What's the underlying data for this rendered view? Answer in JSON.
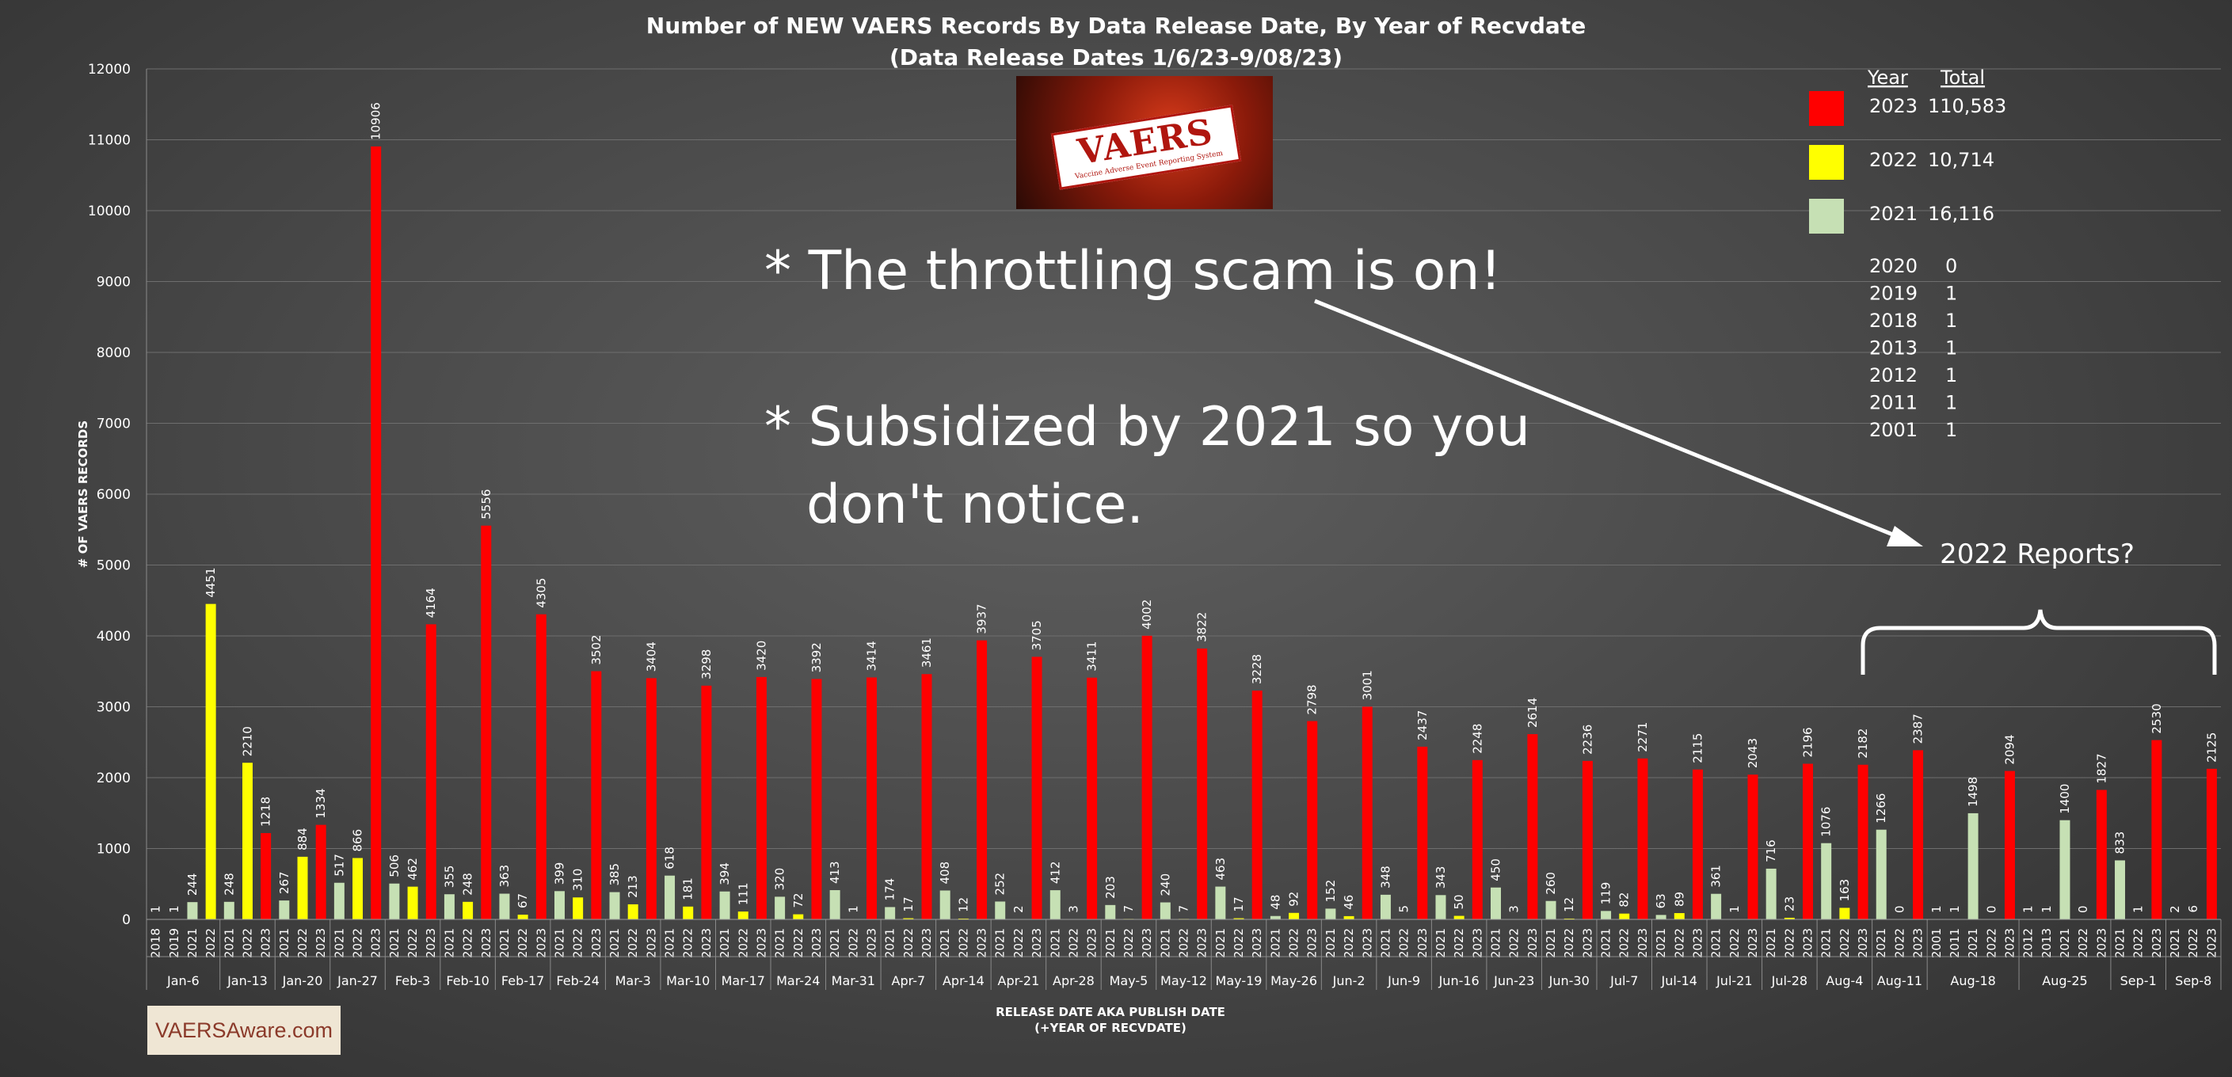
{
  "chart_data": {
    "type": "bar",
    "title": "Number of NEW VAERS Records By Data Release Date, By Year of Recvdate",
    "subtitle": "(Data Release Dates 1/6/23-9/08/23)",
    "ylabel": "# OF VAERS RECORDS",
    "xlabel_line1": "RELEASE DATE AKA PUBLISH DATE",
    "xlabel_line2": "(+YEAR OF RECVDATE)",
    "ylim": [
      0,
      12000
    ],
    "yticks": [
      0,
      1000,
      2000,
      3000,
      4000,
      5000,
      6000,
      7000,
      8000,
      9000,
      10000,
      11000,
      12000
    ],
    "grid": true,
    "series_colors": {
      "2023": "#ff0000",
      "2022": "#ffff00",
      "2021": "#c6e0b4",
      "other": "#c6e0b4"
    },
    "groups": [
      {
        "label": "Jan-6",
        "bars": [
          {
            "year": "2018",
            "value": 1
          },
          {
            "year": "2019",
            "value": 1
          },
          {
            "year": "2021",
            "value": 244
          },
          {
            "year": "2022",
            "value": 4451
          }
        ]
      },
      {
        "label": "Jan-13",
        "bars": [
          {
            "year": "2021",
            "value": 248
          },
          {
            "year": "2022",
            "value": 2210
          },
          {
            "year": "2023",
            "value": 1218
          }
        ]
      },
      {
        "label": "Jan-20",
        "bars": [
          {
            "year": "2021",
            "value": 267
          },
          {
            "year": "2022",
            "value": 884
          },
          {
            "year": "2023",
            "value": 1334
          }
        ]
      },
      {
        "label": "Jan-27",
        "bars": [
          {
            "year": "2021",
            "value": 517
          },
          {
            "year": "2022",
            "value": 866
          },
          {
            "year": "2023",
            "value": 10906
          }
        ]
      },
      {
        "label": "Feb-3",
        "bars": [
          {
            "year": "2021",
            "value": 506
          },
          {
            "year": "2022",
            "value": 462
          },
          {
            "year": "2023",
            "value": 4164
          }
        ]
      },
      {
        "label": "Feb-10",
        "bars": [
          {
            "year": "2021",
            "value": 355
          },
          {
            "year": "2022",
            "value": 248
          },
          {
            "year": "2023",
            "value": 5556
          }
        ]
      },
      {
        "label": "Feb-17",
        "bars": [
          {
            "year": "2021",
            "value": 363
          },
          {
            "year": "2022",
            "value": 67
          },
          {
            "year": "2023",
            "value": 4305
          }
        ]
      },
      {
        "label": "Feb-24",
        "bars": [
          {
            "year": "2021",
            "value": 399
          },
          {
            "year": "2022",
            "value": 310
          },
          {
            "year": "2023",
            "value": 3502
          }
        ]
      },
      {
        "label": "Mar-3",
        "bars": [
          {
            "year": "2021",
            "value": 385
          },
          {
            "year": "2022",
            "value": 213
          },
          {
            "year": "2023",
            "value": 3404
          }
        ]
      },
      {
        "label": "Mar-10",
        "bars": [
          {
            "year": "2021",
            "value": 618
          },
          {
            "year": "2022",
            "value": 181
          },
          {
            "year": "2023",
            "value": 3298
          }
        ]
      },
      {
        "label": "Mar-17",
        "bars": [
          {
            "year": "2021",
            "value": 394
          },
          {
            "year": "2022",
            "value": 111
          },
          {
            "year": "2023",
            "value": 3420
          }
        ]
      },
      {
        "label": "Mar-24",
        "bars": [
          {
            "year": "2021",
            "value": 320
          },
          {
            "year": "2022",
            "value": 72
          },
          {
            "year": "2023",
            "value": 3392
          }
        ]
      },
      {
        "label": "Mar-31",
        "bars": [
          {
            "year": "2021",
            "value": 413
          },
          {
            "year": "2022",
            "value": 1
          },
          {
            "year": "2023",
            "value": 3414
          }
        ]
      },
      {
        "label": "Apr-7",
        "bars": [
          {
            "year": "2021",
            "value": 174
          },
          {
            "year": "2022",
            "value": 17
          },
          {
            "year": "2023",
            "value": 3461
          }
        ]
      },
      {
        "label": "Apr-14",
        "bars": [
          {
            "year": "2021",
            "value": 408
          },
          {
            "year": "2022",
            "value": 12
          },
          {
            "year": "2023",
            "value": 3937
          }
        ]
      },
      {
        "label": "Apr-21",
        "bars": [
          {
            "year": "2021",
            "value": 252
          },
          {
            "year": "2022",
            "value": 2
          },
          {
            "year": "2023",
            "value": 3705
          }
        ]
      },
      {
        "label": "Apr-28",
        "bars": [
          {
            "year": "2021",
            "value": 412
          },
          {
            "year": "2022",
            "value": 3
          },
          {
            "year": "2023",
            "value": 3411
          }
        ]
      },
      {
        "label": "May-5",
        "bars": [
          {
            "year": "2021",
            "value": 203
          },
          {
            "year": "2022",
            "value": 7
          },
          {
            "year": "2023",
            "value": 4002
          }
        ]
      },
      {
        "label": "May-12",
        "bars": [
          {
            "year": "2021",
            "value": 240
          },
          {
            "year": "2022",
            "value": 7
          },
          {
            "year": "2023",
            "value": 3822
          }
        ]
      },
      {
        "label": "May-19",
        "bars": [
          {
            "year": "2021",
            "value": 463
          },
          {
            "year": "2022",
            "value": 17
          },
          {
            "year": "2023",
            "value": 3228
          }
        ]
      },
      {
        "label": "May-26",
        "bars": [
          {
            "year": "2021",
            "value": 48
          },
          {
            "year": "2022",
            "value": 92
          },
          {
            "year": "2023",
            "value": 2798
          }
        ]
      },
      {
        "label": "Jun-2",
        "bars": [
          {
            "year": "2021",
            "value": 152
          },
          {
            "year": "2022",
            "value": 46
          },
          {
            "year": "2023",
            "value": 3001
          }
        ]
      },
      {
        "label": "Jun-9",
        "bars": [
          {
            "year": "2021",
            "value": 348
          },
          {
            "year": "2022",
            "value": 5
          },
          {
            "year": "2023",
            "value": 2437
          }
        ]
      },
      {
        "label": "Jun-16",
        "bars": [
          {
            "year": "2021",
            "value": 343
          },
          {
            "year": "2022",
            "value": 50
          },
          {
            "year": "2023",
            "value": 2248
          }
        ]
      },
      {
        "label": "Jun-23",
        "bars": [
          {
            "year": "2021",
            "value": 450
          },
          {
            "year": "2022",
            "value": 3
          },
          {
            "year": "2023",
            "value": 2614
          }
        ]
      },
      {
        "label": "Jun-30",
        "bars": [
          {
            "year": "2021",
            "value": 260
          },
          {
            "year": "2022",
            "value": 12
          },
          {
            "year": "2023",
            "value": 2236
          }
        ]
      },
      {
        "label": "Jul-7",
        "bars": [
          {
            "year": "2021",
            "value": 119
          },
          {
            "year": "2022",
            "value": 82
          },
          {
            "year": "2023",
            "value": 2271
          }
        ]
      },
      {
        "label": "Jul-14",
        "bars": [
          {
            "year": "2021",
            "value": 63
          },
          {
            "year": "2022",
            "value": 89
          },
          {
            "year": "2023",
            "value": 2115
          }
        ]
      },
      {
        "label": "Jul-21",
        "bars": [
          {
            "year": "2021",
            "value": 361
          },
          {
            "year": "2022",
            "value": 1
          },
          {
            "year": "2023",
            "value": 2043
          }
        ]
      },
      {
        "label": "Jul-28",
        "bars": [
          {
            "year": "2021",
            "value": 716
          },
          {
            "year": "2022",
            "value": 23
          },
          {
            "year": "2023",
            "value": 2196
          }
        ]
      },
      {
        "label": "Aug-4",
        "bars": [
          {
            "year": "2021",
            "value": 1076
          },
          {
            "year": "2022",
            "value": 163
          },
          {
            "year": "2023",
            "value": 2182
          }
        ]
      },
      {
        "label": "Aug-11",
        "bars": [
          {
            "year": "2021",
            "value": 1266
          },
          {
            "year": "2022",
            "value": 0
          },
          {
            "year": "2023",
            "value": 2387
          }
        ]
      },
      {
        "label": "Aug-18",
        "bars": [
          {
            "year": "2001",
            "value": 1
          },
          {
            "year": "2011",
            "value": 1
          },
          {
            "year": "2021",
            "value": 1498
          },
          {
            "year": "2022",
            "value": 0
          },
          {
            "year": "2023",
            "value": 2094
          }
        ]
      },
      {
        "label": "Aug-25",
        "bars": [
          {
            "year": "2012",
            "value": 1
          },
          {
            "year": "2013",
            "value": 1
          },
          {
            "year": "2021",
            "value": 1400
          },
          {
            "year": "2022",
            "value": 0
          },
          {
            "year": "2023",
            "value": 1827
          }
        ]
      },
      {
        "label": "Sep-1",
        "bars": [
          {
            "year": "2021",
            "value": 833
          },
          {
            "year": "2022",
            "value": 1
          },
          {
            "year": "2023",
            "value": 2530
          }
        ]
      },
      {
        "label": "Sep-8",
        "bars": [
          {
            "year": "2021",
            "value": 2
          },
          {
            "year": "2022",
            "value": 6
          },
          {
            "year": "2023",
            "value": 2125
          }
        ]
      }
    ],
    "legend": {
      "header_year": "Year",
      "header_total": "Total",
      "swatch_entries": [
        {
          "year": "2023",
          "total": "110,583",
          "color": "#ff0000"
        },
        {
          "year": "2022",
          "total": "10,714",
          "color": "#ffff00"
        },
        {
          "year": "2021",
          "total": "16,116",
          "color": "#c6e0b4"
        }
      ],
      "text_entries": [
        {
          "year": "2020",
          "total": "0"
        },
        {
          "year": "2019",
          "total": "1"
        },
        {
          "year": "2018",
          "total": "1"
        },
        {
          "year": "2013",
          "total": "1"
        },
        {
          "year": "2012",
          "total": "1"
        },
        {
          "year": "2011",
          "total": "1"
        },
        {
          "year": "2001",
          "total": "1"
        }
      ]
    },
    "annotations": {
      "line1": "*  The throttling scam is on!",
      "line2": "* Subsidized by 2021 so you",
      "line3": "don't notice.",
      "brace_label": "2022 Reports?"
    }
  },
  "logo": {
    "word": "VAERS",
    "subtitle": "Vaccine Adverse Event Reporting System"
  },
  "watermark": "VAERSAware.com"
}
